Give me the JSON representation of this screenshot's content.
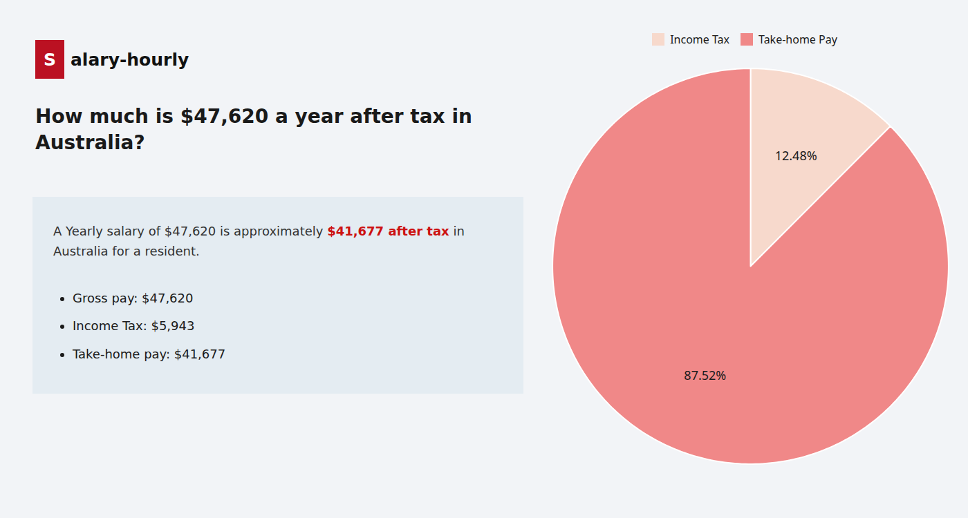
{
  "chart_data": {
    "type": "pie",
    "title": "How much is $47,620 a year after tax in\nAustralia?",
    "categories": [
      "Income Tax",
      "Take-home Pay"
    ],
    "values": [
      12.48,
      87.52
    ],
    "value_labels": [
      "12.48%",
      "87.52%"
    ],
    "colors": [
      "#f7d9cc",
      "#f08888"
    ],
    "data_labels": true,
    "legend": "top",
    "annotations": [
      {
        "text": "S",
        "color": "#ffffff"
      },
      {
        "text": "alary-hourly",
        "color": "#111111"
      },
      {
        "text": "A Yearly salary of $47,620 is approximately ",
        "color": "#333333"
      },
      {
        "text": "$41,677 after tax",
        "color": "#cc1111"
      },
      {
        "text": " in",
        "color": "#333333"
      },
      {
        "text": "Australia for a resident.",
        "color": "#333333"
      },
      {
        "text": "Gross pay: $47,620",
        "color": "#1a1a1a"
      },
      {
        "text": "Income Tax: $5,943",
        "color": "#1a1a1a"
      },
      {
        "text": "Take-home pay: $41,677",
        "color": "#1a1a1a"
      }
    ]
  }
}
